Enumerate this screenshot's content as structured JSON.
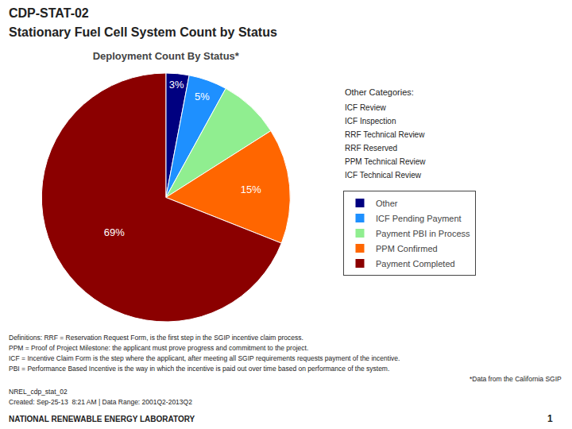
{
  "chart_data": {
    "type": "pie",
    "header": [
      "CDP-STAT-02",
      "Stationary Fuel Cell System Count by Status"
    ],
    "title": "Deployment Count By Status*",
    "categories": [
      "Other",
      "ICF Pending Payment",
      "Payment PBI in Process",
      "PPM Confirmed",
      "Payment Completed"
    ],
    "values": [
      3,
      5,
      8,
      15,
      69
    ],
    "value_labels": [
      "3%",
      "5%",
      null,
      "15%",
      "69%"
    ],
    "colors": [
      "#000080",
      "#1E90FF",
      "#90EE90",
      "#FF6600",
      "#8B0000"
    ],
    "data_labels": true,
    "legend": "right",
    "side_note_title": "Other Categories:",
    "side_note": [
      "ICF Review",
      "ICF Inspection",
      "RRF Technical Review",
      "RRF Reserved",
      "PPM Technical Review",
      "ICF Technical Review"
    ],
    "notes": [
      "Definitions: RRF = Reservation Request Form, is the first step in the SGIP incentive claim process.",
      "PPM = Proof of Project Milestone: the applicant must prove progress and commitment to the project.",
      "ICF = Incentive Claim Form is the step where the applicant, after meeting all SGIP requirements requests payment of the incentive.",
      "PBI = Performance Based Incentive is the way in which the incentive is paid out over time based on performance of the system."
    ],
    "source": "*Data from the California SGIP",
    "footer": [
      "NREL_cdp_stat_02",
      "Created: Sep-25-13  8:21 AM | Data Range: 2001Q2-2013Q2"
    ],
    "organization": "NATIONAL RENEWABLE ENERGY LABORATORY",
    "page": "1"
  }
}
